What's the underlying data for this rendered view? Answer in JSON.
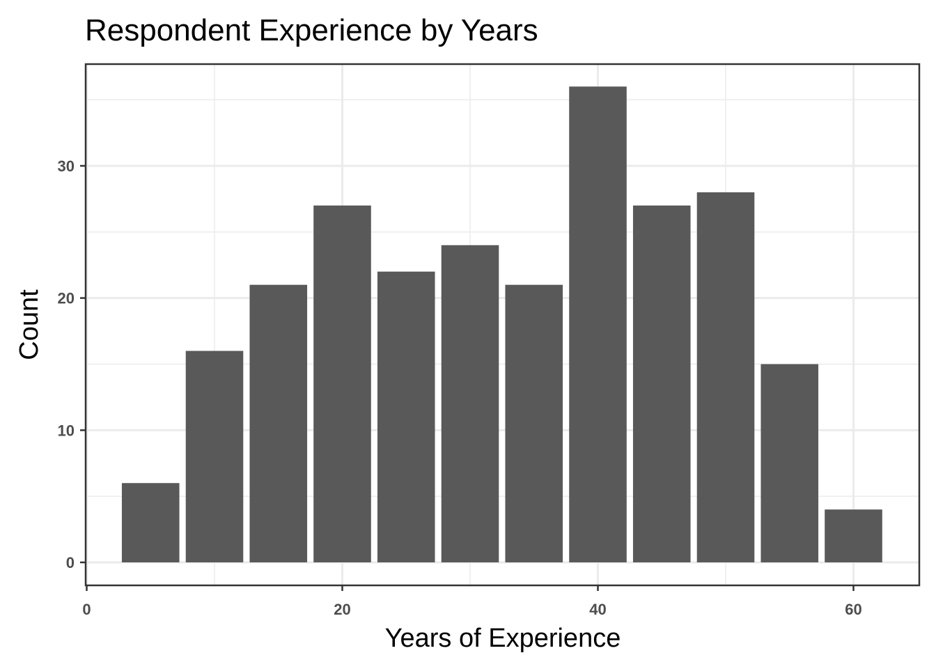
{
  "chart_data": {
    "type": "bar",
    "title": "Respondent Experience by Years",
    "xlabel": "Years of Experience",
    "ylabel": "Count",
    "x": [
      5,
      10,
      15,
      20,
      25,
      30,
      35,
      40,
      45,
      50,
      55,
      60
    ],
    "bin_width": 5,
    "values": [
      6,
      16,
      21,
      27,
      22,
      24,
      21,
      36,
      27,
      28,
      15,
      4
    ],
    "xlim": [
      0,
      65
    ],
    "ylim": [
      0,
      37
    ],
    "x_ticks": [
      0,
      20,
      40,
      60
    ],
    "y_ticks": [
      0,
      10,
      20,
      30
    ],
    "grid": true,
    "bar_color": "#595959",
    "grid_color": "#ebebeb",
    "panel_border_color": "#333333"
  }
}
